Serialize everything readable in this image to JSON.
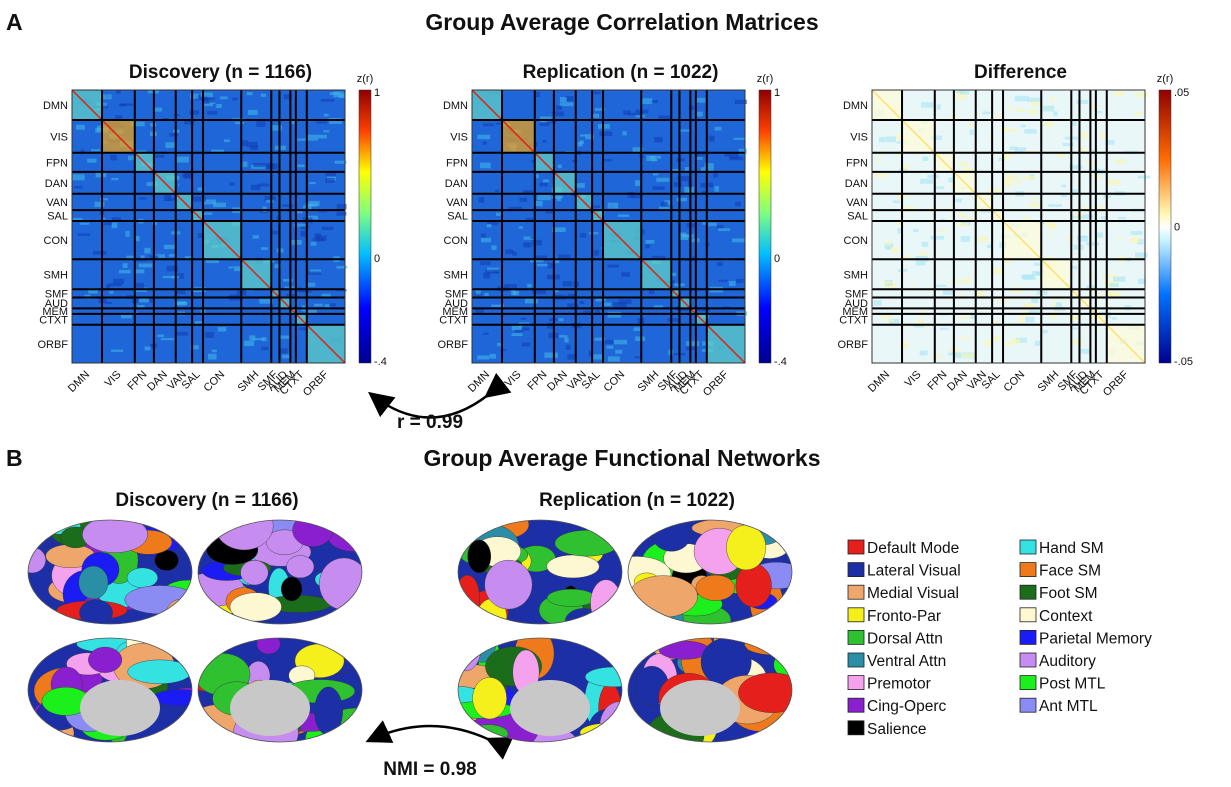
{
  "panel_a": {
    "letter": "A",
    "title": "Group Average Correlation Matrices",
    "matrices": [
      {
        "title": "Discovery (n = 1166)",
        "colorbar_label": "z(r)",
        "colorbar_ticks": [
          "1",
          "0",
          "-.4"
        ]
      },
      {
        "title": "Replication (n = 1022)",
        "colorbar_label": "z(r)",
        "colorbar_ticks": [
          "1",
          "0",
          "-.4"
        ]
      },
      {
        "title": "Difference",
        "colorbar_label": "z(r)",
        "colorbar_ticks": [
          ".05",
          "0",
          "-.05"
        ]
      }
    ],
    "networks": [
      "DMN",
      "VIS",
      "FPN",
      "DAN",
      "VAN",
      "SAL",
      "CON",
      "SMH",
      "SMF",
      "AUD",
      "MEM",
      "CTXT",
      "ORBF"
    ],
    "comparison": "r = 0.99"
  },
  "panel_b": {
    "letter": "B",
    "title": "Group Average Functional Networks",
    "maps": [
      {
        "title": "Discovery (n = 1166)"
      },
      {
        "title": "Replication (n = 1022)"
      }
    ],
    "legend": [
      {
        "label": "Default Mode",
        "color": "#e41f1c"
      },
      {
        "label": "Lateral Visual",
        "color": "#1c2fa6"
      },
      {
        "label": "Medial Visual",
        "color": "#efa66a"
      },
      {
        "label": "Fronto-Par",
        "color": "#f5f01c"
      },
      {
        "label": "Dorsal Attn",
        "color": "#2fc12f"
      },
      {
        "label": "Ventral Attn",
        "color": "#2a8ea6"
      },
      {
        "label": "Premotor",
        "color": "#f5a2ee"
      },
      {
        "label": "Cing-Operc",
        "color": "#8a1fd0"
      },
      {
        "label": "Salience",
        "color": "#000000"
      },
      {
        "label": "Hand SM",
        "color": "#34e2e2"
      },
      {
        "label": "Face SM",
        "color": "#ef7a1c"
      },
      {
        "label": "Foot SM",
        "color": "#1b6c1b"
      },
      {
        "label": "Context",
        "color": "#fdf7d2"
      },
      {
        "label": "Parietal Memory",
        "color": "#1b1bf3"
      },
      {
        "label": "Auditory",
        "color": "#c78cf0"
      },
      {
        "label": "Post MTL",
        "color": "#1cf01c"
      },
      {
        "label": "Ant MTL",
        "color": "#8a8cf3"
      }
    ],
    "comparison": "NMI = 0.98"
  }
}
